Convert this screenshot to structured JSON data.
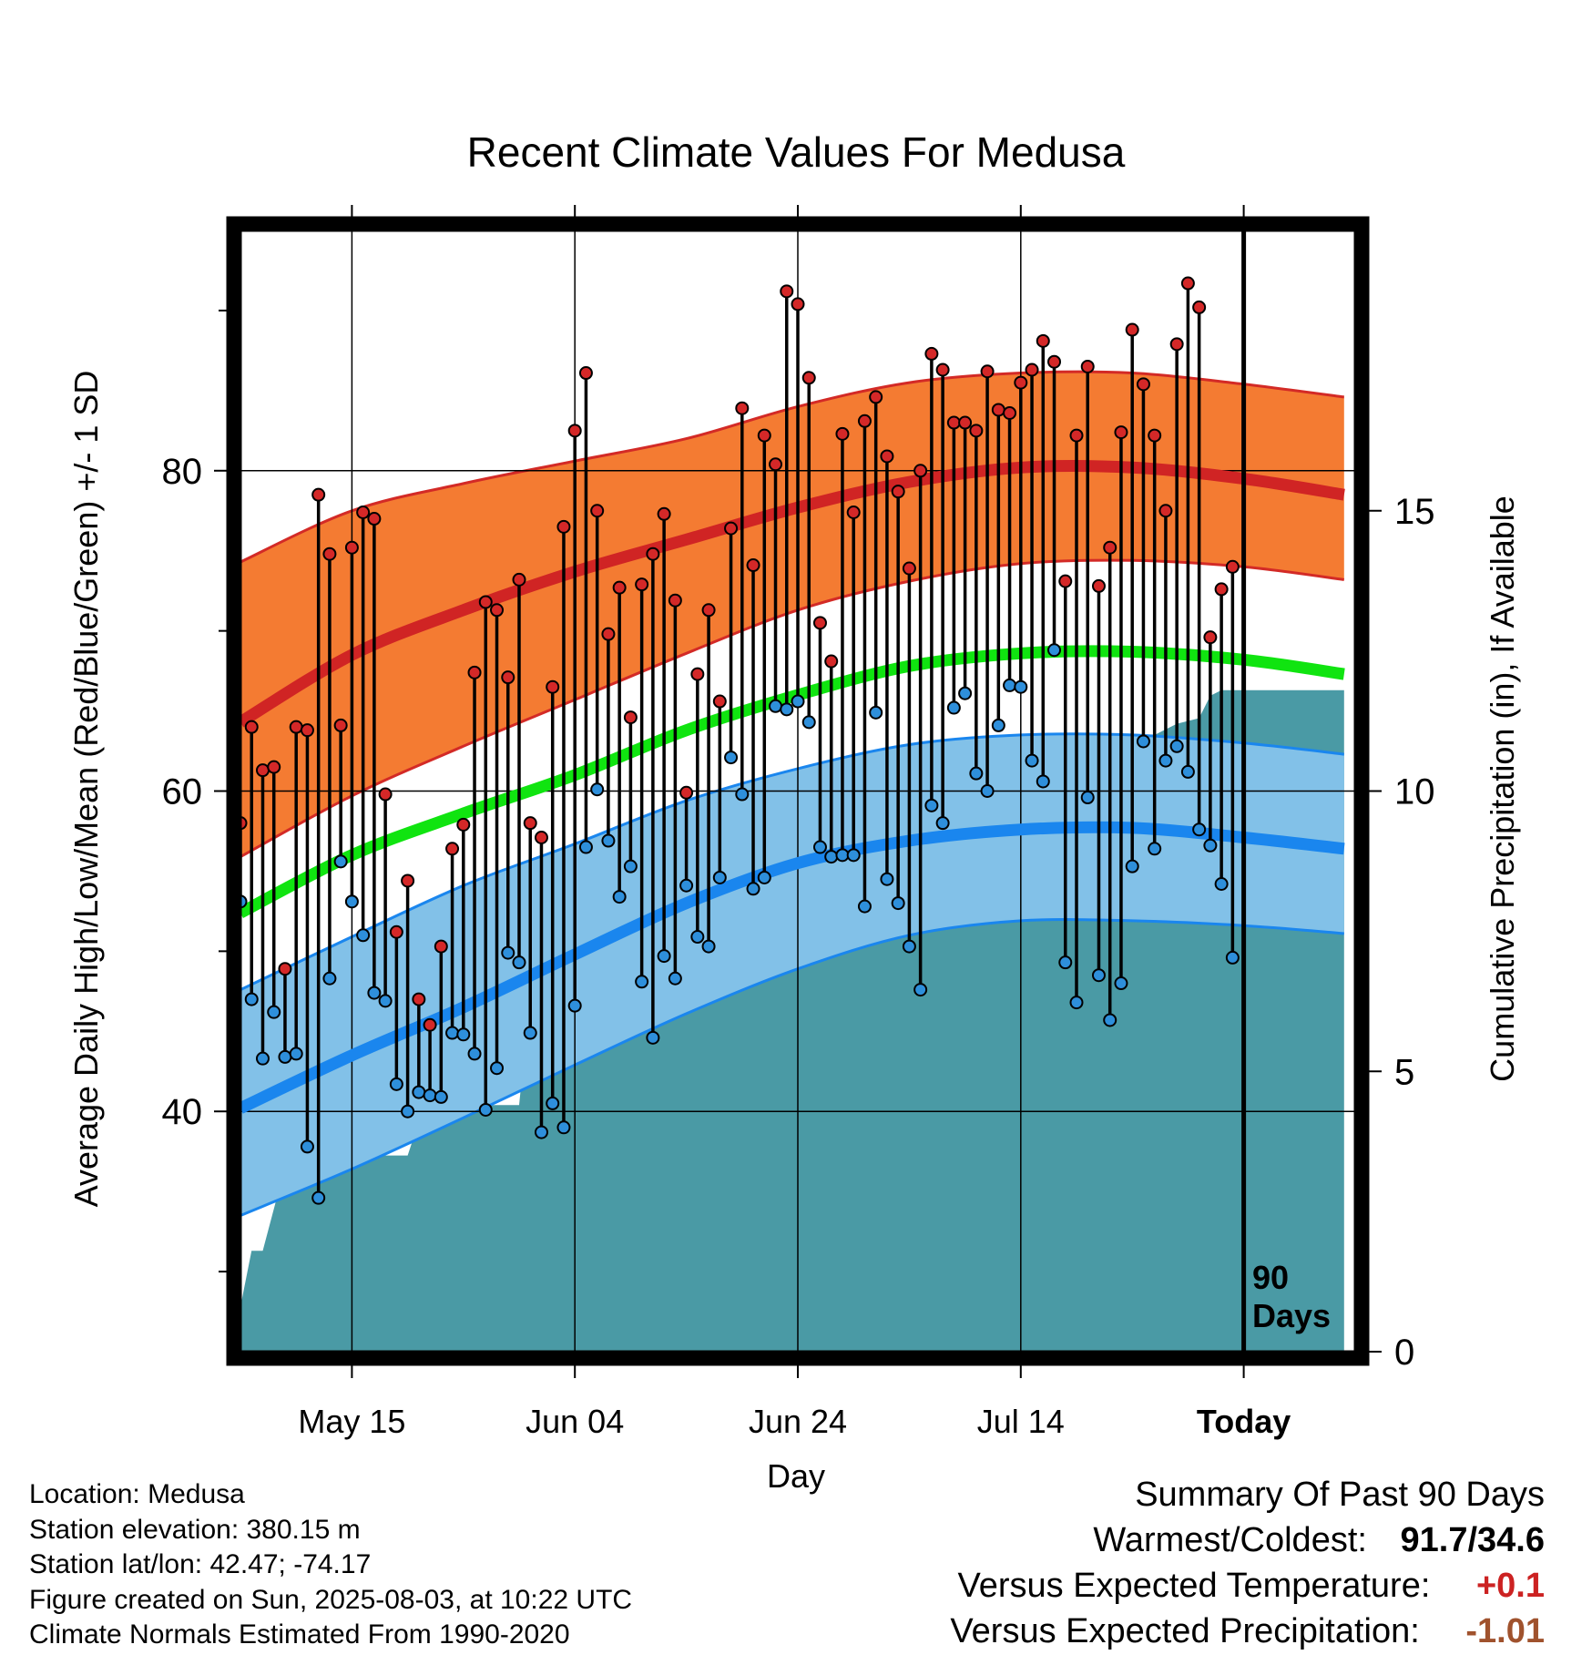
{
  "colors": {
    "high_band": "#f47b32",
    "high_band_edge": "#d32a26",
    "high_mean": "#d02424",
    "low_band": "#82c1e8",
    "low_band_edge": "#1a86ee",
    "low_mean": "#1a86ee",
    "mean_line": "#10e410",
    "precip_fill": "#4a9aa5",
    "high_dot": "#d42828",
    "low_dot": "#2e8fdb",
    "temp_delta": "#cc2222",
    "precip_delta": "#a0522d"
  },
  "chart_data": {
    "type": "line",
    "title": "Recent Climate Values For Medusa",
    "xlabel": "Day",
    "ylabel_left": "Average Daily High/Low/Mean (Red/Blue/Green) +/- 1 SD",
    "ylabel_right": "Cumulative Precipitation (in), If Available",
    "x_range_days": [
      0,
      100
    ],
    "y_left_range": [
      25,
      95
    ],
    "y_right_range": [
      0,
      20
    ],
    "x_ticks": [
      {
        "day": 10,
        "label": "May 15"
      },
      {
        "day": 30,
        "label": "Jun 04"
      },
      {
        "day": 50,
        "label": "Jun 24"
      },
      {
        "day": 70,
        "label": "Jul 14"
      },
      {
        "day": 90,
        "label": "Today"
      }
    ],
    "y_left_ticks_labeled": [
      40,
      60,
      80
    ],
    "y_left_ticks_minor": [
      30,
      50,
      70,
      90
    ],
    "y_right_ticks": [
      0,
      5,
      10,
      15
    ],
    "today_day": 90,
    "today_annotation": [
      "90",
      "Days"
    ],
    "normals": {
      "days": [
        0,
        10,
        20,
        30,
        40,
        50,
        60,
        70,
        80,
        90,
        99
      ],
      "high_mean": [
        64.3,
        68.5,
        71.3,
        73.7,
        75.7,
        77.7,
        79.3,
        80.2,
        80.2,
        79.5,
        78.5
      ],
      "high_upper": [
        74.3,
        77.5,
        79.2,
        80.6,
        82.0,
        84.0,
        85.5,
        86.1,
        86.1,
        85.4,
        84.6
      ],
      "high_lower": [
        55.9,
        59.7,
        62.8,
        65.7,
        68.6,
        71.3,
        73.1,
        74.2,
        74.4,
        74.0,
        73.2
      ],
      "mean": [
        52.4,
        56.0,
        58.6,
        61.0,
        63.8,
        66.0,
        67.8,
        68.6,
        68.7,
        68.2,
        67.3
      ],
      "low_mean": [
        40.2,
        43.5,
        46.5,
        49.8,
        53.0,
        55.5,
        56.9,
        57.6,
        57.7,
        57.1,
        56.4
      ],
      "low_upper": [
        47.6,
        50.9,
        54.1,
        56.7,
        59.4,
        61.4,
        62.9,
        63.5,
        63.5,
        63.0,
        62.3
      ],
      "low_lower": [
        33.5,
        36.4,
        39.6,
        42.9,
        46.1,
        48.9,
        51.0,
        51.9,
        51.9,
        51.6,
        51.1
      ]
    },
    "daily": {
      "start_day": 0,
      "high": [
        58.0,
        64.0,
        61.3,
        61.5,
        48.9,
        64.0,
        63.8,
        78.5,
        74.8,
        64.1,
        75.2,
        77.4,
        77.0,
        59.8,
        51.2,
        54.4,
        47.0,
        45.4,
        50.3,
        56.4,
        57.9,
        67.4,
        71.8,
        71.3,
        67.1,
        73.2,
        58.0,
        57.1,
        66.5,
        76.5,
        82.5,
        86.1,
        77.5,
        69.8,
        72.7,
        64.6,
        72.9,
        74.8,
        77.3,
        71.9,
        59.9,
        67.3,
        71.3,
        65.6,
        76.4,
        83.9,
        74.1,
        82.2,
        80.4,
        91.2,
        90.4,
        85.8,
        70.5,
        68.1,
        82.3,
        77.4,
        83.1,
        84.6,
        80.9,
        78.7,
        73.9,
        80.0,
        87.3,
        86.3,
        83.0,
        83.0,
        82.5,
        86.2,
        83.8,
        83.6,
        85.5,
        86.3,
        88.1,
        86.8,
        73.1,
        82.2,
        86.5,
        72.8,
        75.2,
        82.4,
        88.8,
        85.4,
        82.2,
        77.5,
        87.9,
        91.7,
        90.2,
        69.6,
        72.6,
        74.0
      ],
      "low": [
        53.1,
        47.0,
        43.3,
        46.2,
        43.4,
        43.6,
        37.8,
        34.6,
        48.3,
        55.6,
        53.1,
        51.0,
        47.4,
        46.9,
        41.7,
        40.0,
        41.2,
        41.0,
        40.9,
        44.9,
        44.8,
        43.6,
        40.1,
        42.7,
        49.9,
        49.3,
        44.9,
        38.7,
        40.5,
        39.0,
        46.6,
        56.5,
        60.1,
        56.9,
        53.4,
        55.3,
        48.1,
        44.6,
        49.7,
        48.3,
        54.1,
        50.9,
        50.3,
        54.6,
        62.1,
        59.8,
        53.9,
        54.6,
        65.3,
        65.1,
        65.6,
        64.3,
        56.5,
        55.9,
        56.0,
        56.0,
        52.8,
        64.9,
        54.5,
        53.0,
        50.3,
        47.6,
        59.1,
        58.0,
        65.2,
        66.1,
        61.1,
        60.0,
        64.1,
        66.6,
        66.5,
        61.9,
        60.6,
        68.8,
        49.3,
        46.8,
        59.6,
        48.5,
        45.7,
        48.0,
        55.3,
        63.1,
        56.4,
        61.9,
        62.8,
        61.2,
        57.6,
        56.6,
        54.2,
        49.6
      ]
    },
    "precip_cumulative": {
      "days": [
        0,
        1,
        2,
        4,
        5,
        8,
        10,
        15,
        16,
        18,
        19,
        21,
        25,
        26,
        32,
        33,
        34,
        35,
        36,
        38,
        40,
        41,
        43,
        44,
        45,
        46,
        48,
        50,
        52,
        54,
        56,
        58,
        60,
        62,
        64,
        66,
        68,
        70,
        72,
        74,
        76,
        78,
        80,
        82,
        84,
        86,
        87,
        88,
        90,
        99
      ],
      "values": [
        0.8,
        1.8,
        1.8,
        3.3,
        3.3,
        3.3,
        3.5,
        3.5,
        4.1,
        4.4,
        4.4,
        4.4,
        4.4,
        6.4,
        6.4,
        7.0,
        8.4,
        8.5,
        8.9,
        8.9,
        9.3,
        9.3,
        9.5,
        9.7,
        9.8,
        9.8,
        9.8,
        9.9,
        10.0,
        10.1,
        10.2,
        10.3,
        10.3,
        10.4,
        10.4,
        10.5,
        10.5,
        10.6,
        10.7,
        10.8,
        10.8,
        10.9,
        11.0,
        11.0,
        11.2,
        11.3,
        11.7,
        11.8,
        11.8,
        11.8
      ]
    }
  },
  "metadata": {
    "location": "Location: Medusa",
    "elevation": "Station elevation: 380.15 m",
    "latlon": "Station lat/lon: 42.47; -74.17",
    "created": "Figure created on Sun, 2025-08-03, at 10:22 UTC",
    "normals_period": "Climate Normals Estimated From 1990-2020"
  },
  "summary": {
    "title": "Summary Of Past 90 Days",
    "warmest_coldest_label": "Warmest/Coldest:",
    "warmest_coldest_value": "91.7/34.6",
    "temp_label": "Versus Expected Temperature:",
    "temp_value": "+0.1",
    "precip_label": "Versus Expected Precipitation:",
    "precip_value": "-1.01"
  }
}
